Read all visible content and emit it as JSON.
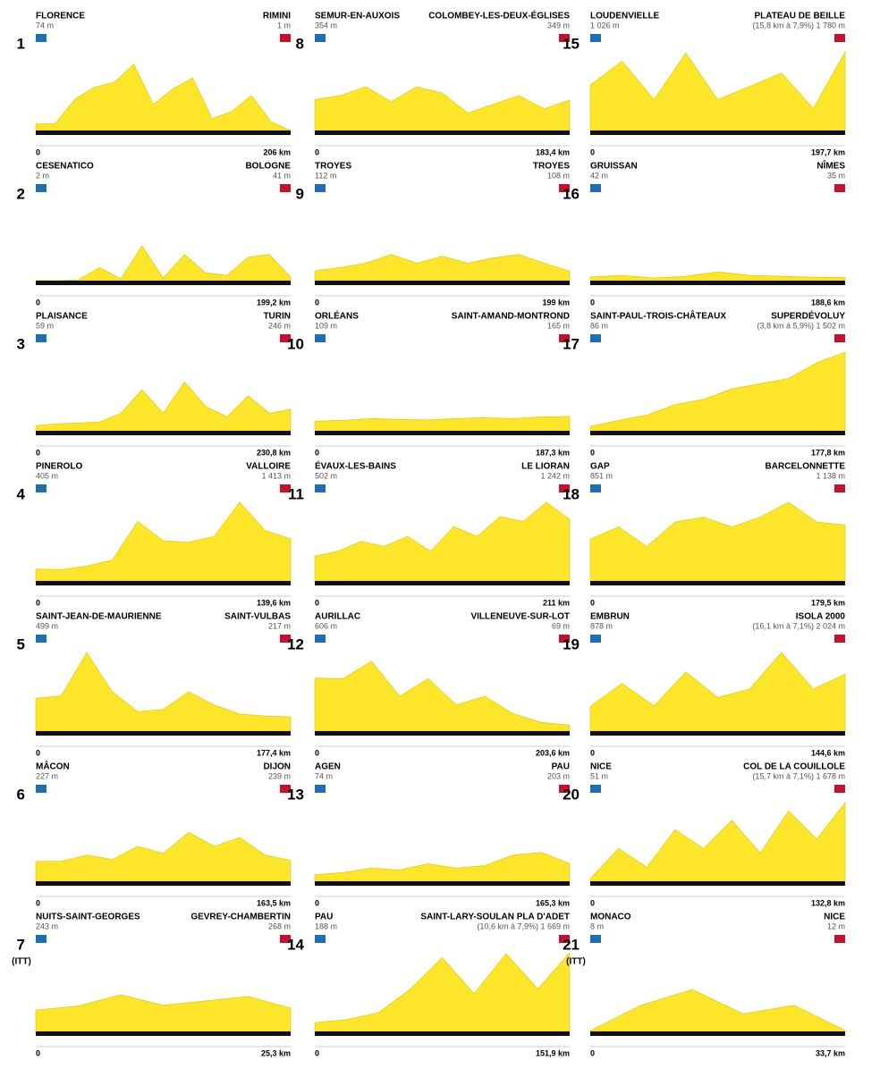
{
  "stages": [
    {
      "number": "1",
      "start": "FLORENCE",
      "start_alt": "74 m",
      "finish": "RIMINI",
      "finish_alt": "1 m",
      "distance": "206 km",
      "profile": [
        74,
        82,
        361,
        496,
        550,
        760,
        300,
        480,
        600,
        137,
        220,
        400,
        100,
        1
      ]
    },
    {
      "number": "2",
      "start": "CESENATICO",
      "start_alt": "2 m",
      "finish": "BOLOGNE",
      "finish_alt": "41 m",
      "distance": "199,2 km",
      "profile": [
        2,
        0,
        10,
        150,
        20,
        400,
        30,
        300,
        90,
        60,
        270,
        300,
        41
      ]
    },
    {
      "number": "3",
      "start": "PLAISANCE",
      "start_alt": "59 m",
      "finish": "TURIN",
      "finish_alt": "246 m",
      "distance": "230,8 km",
      "profile": [
        59,
        80,
        90,
        100,
        200,
        470,
        200,
        560,
        280,
        160,
        400,
        200,
        246
      ]
    },
    {
      "number": "4",
      "start": "PINEROLO",
      "start_alt": "405 m",
      "finish": "VALLOIRE",
      "finish_alt": "1 413 m",
      "distance": "139,6 km",
      "profile": [
        405,
        380,
        500,
        700,
        2000,
        1350,
        1300,
        1500,
        2642,
        1700,
        1413
      ]
    },
    {
      "number": "5",
      "start": "SAINT-JEAN-DE-MAURIENNE",
      "start_alt": "499 m",
      "finish": "SAINT-VULBAS",
      "finish_alt": "217 m",
      "distance": "177,4 km",
      "profile": [
        499,
        540,
        1200,
        600,
        300,
        330,
        600,
        400,
        260,
        230,
        217
      ]
    },
    {
      "number": "6",
      "start": "MÂCON",
      "start_alt": "227 m",
      "finish": "DIJON",
      "finish_alt": "239 m",
      "distance": "163,5 km",
      "profile": [
        227,
        230,
        300,
        250,
        400,
        320,
        560,
        400,
        500,
        300,
        239
      ]
    },
    {
      "number": "7",
      "note": "(ITT)",
      "start": "NUITS-SAINT-GEORGES",
      "start_alt": "243 m",
      "finish": "GEVREY-CHAMBERTIN",
      "finish_alt": "268 m",
      "distance": "25,3 km",
      "profile": [
        243,
        290,
        420,
        300,
        350,
        400,
        268
      ]
    },
    {
      "number": "8",
      "start": "SEMUR-EN-AUXOIS",
      "start_alt": "354 m",
      "finish": "COLOMBEY-LES-DEUX-ÉGLISES",
      "finish_alt": "349 m",
      "distance": "183,4 km",
      "profile": [
        354,
        400,
        500,
        330,
        500,
        430,
        200,
        300,
        400,
        250,
        349
      ]
    },
    {
      "number": "9",
      "start": "TROYES",
      "start_alt": "112 m",
      "finish": "TROYES",
      "finish_alt": "108 m",
      "distance": "199 km",
      "profile": [
        112,
        150,
        200,
        300,
        200,
        280,
        200,
        260,
        300,
        200,
        108
      ]
    },
    {
      "number": "10",
      "start": "ORLÉANS",
      "start_alt": "109 m",
      "finish": "SAINT-AMAND-MONTROND",
      "finish_alt": "165 m",
      "distance": "187,3 km",
      "profile": [
        109,
        120,
        140,
        130,
        125,
        140,
        150,
        140,
        160,
        165
      ]
    },
    {
      "number": "11",
      "start": "ÉVAUX-LES-BAINS",
      "start_alt": "502 m",
      "finish": "LE LIORAN",
      "finish_alt": "1 242 m",
      "distance": "211 km",
      "profile": [
        502,
        600,
        800,
        700,
        900,
        600,
        1100,
        900,
        1300,
        1200,
        1589,
        1242
      ]
    },
    {
      "number": "12",
      "start": "AURILLAC",
      "start_alt": "606 m",
      "finish": "VILLENEUVE-SUR-LOT",
      "finish_alt": "69 m",
      "distance": "203,6 km",
      "profile": [
        606,
        600,
        800,
        400,
        600,
        300,
        400,
        200,
        100,
        69
      ]
    },
    {
      "number": "13",
      "start": "AGEN",
      "start_alt": "74 m",
      "finish": "PAU",
      "finish_alt": "203 m",
      "distance": "165,3 km",
      "profile": [
        74,
        100,
        150,
        130,
        200,
        150,
        180,
        300,
        330,
        203
      ]
    },
    {
      "number": "14",
      "start": "PAU",
      "start_alt": "188 m",
      "finish": "SAINT-LARY-SOULAN PLA D'ADET",
      "finish_alt": "(10,6 km à 7,9%) 1 669 m",
      "distance": "151,9 km",
      "profile": [
        188,
        250,
        400,
        900,
        1569,
        800,
        1650,
        900,
        1669
      ]
    },
    {
      "number": "15",
      "start": "LOUDENVIELLE",
      "start_alt": "1 026 m",
      "finish": "PLATEAU DE BEILLE",
      "finish_alt": "(15,8 km à 7,9%) 1 780 m",
      "distance": "197,7 km",
      "profile": [
        1026,
        1569,
        700,
        1755,
        700,
        1000,
        1300,
        500,
        1780
      ]
    },
    {
      "number": "16",
      "start": "GRUISSAN",
      "start_alt": "42 m",
      "finish": "NÎMES",
      "finish_alt": "35 m",
      "distance": "188,6 km",
      "profile": [
        42,
        60,
        30,
        50,
        100,
        60,
        50,
        40,
        35
      ]
    },
    {
      "number": "17",
      "start": "SAINT-PAUL-TROIS-CHÂTEAUX",
      "start_alt": "86 m",
      "finish": "SUPERDÉVOLUY",
      "finish_alt": "(3,8 km à 5,9%) 1 502 m",
      "distance": "177,8 km",
      "profile": [
        86,
        200,
        300,
        500,
        600,
        800,
        900,
        1000,
        1300,
        1502
      ]
    },
    {
      "number": "18",
      "start": "GAP",
      "start_alt": "851 m",
      "finish": "BARCELONNETTE",
      "finish_alt": "1 138 m",
      "distance": "179,5 km",
      "profile": [
        851,
        1100,
        700,
        1200,
        1300,
        1100,
        1300,
        1600,
        1200,
        1138
      ]
    },
    {
      "number": "19",
      "start": "EMBRUN",
      "start_alt": "878 m",
      "finish": "ISOLA 2000",
      "finish_alt": "(16,1 km à 7,1%) 2 024 m",
      "distance": "144,6 km",
      "profile": [
        878,
        1700,
        900,
        2109,
        1200,
        1500,
        2802,
        1500,
        2024
      ]
    },
    {
      "number": "20",
      "start": "NICE",
      "start_alt": "51 m",
      "finish": "COL DE LA COUILLOLE",
      "finish_alt": "(15,7 km à 7,1%) 1 678 m",
      "distance": "132,8 km",
      "profile": [
        51,
        700,
        300,
        1100,
        700,
        1300,
        600,
        1500,
        900,
        1678
      ]
    },
    {
      "number": "21",
      "note": "(ITT)",
      "start": "MONACO",
      "start_alt": "8 m",
      "finish": "NICE",
      "finish_alt": "12 m",
      "distance": "33,7 km",
      "profile": [
        8,
        300,
        480,
        200,
        300,
        12
      ]
    }
  ],
  "zero": "0"
}
